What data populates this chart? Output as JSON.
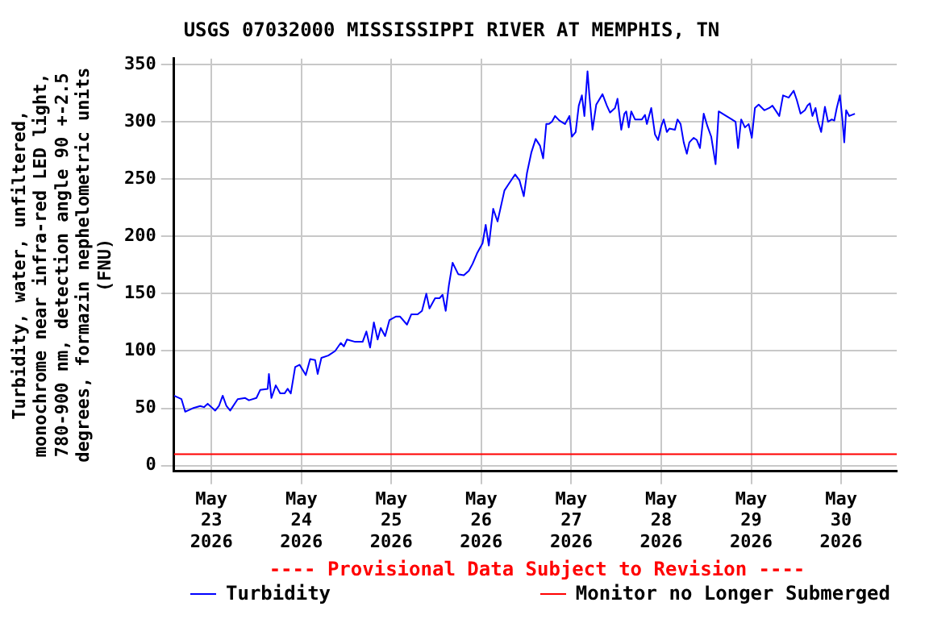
{
  "chart_data": {
    "type": "line",
    "title": "USGS 07032000 MISSISSIPPI RIVER AT MEMPHIS, TN",
    "ylabel": "Turbidity, water, unfiltered, monochrome near infra-red LED light, 780-900 nm, detection angle 90 +-2.5 degrees, formazin nephelometric units (FNU)",
    "annotations": [
      "---- Provisional Data Subject to Revision ----"
    ],
    "xlim": [
      "2026-05-22T14:00",
      "2026-05-30T14:50"
    ],
    "xticks": [
      {
        "value": "2026-05-23",
        "label": "May\n23\n2026"
      },
      {
        "value": "2026-05-24",
        "label": "May\n24\n2026"
      },
      {
        "value": "2026-05-25",
        "label": "May\n25\n2026"
      },
      {
        "value": "2026-05-26",
        "label": "May\n26\n2026"
      },
      {
        "value": "2026-05-27",
        "label": "May\n27\n2026"
      },
      {
        "value": "2026-05-28",
        "label": "May\n28\n2026"
      },
      {
        "value": "2026-05-29",
        "label": "May\n29\n2026"
      },
      {
        "value": "2026-05-30",
        "label": "May\n30\n2026"
      }
    ],
    "ylim": [
      -5,
      355
    ],
    "yticks": [
      0,
      50,
      100,
      150,
      200,
      250,
      300,
      350
    ],
    "grid": true,
    "legend": "bottom",
    "marker": "none",
    "line_style": "solid",
    "ref_lines": [
      {
        "axis": "y",
        "value": 10,
        "label": "Monitor no Longer Submerged",
        "color": "#ff0000"
      }
    ],
    "series": [
      {
        "name": "Turbidity",
        "color": "#0000ff",
        "x": [
          "2026-05-22T14:00",
          "2026-05-22T16:00",
          "2026-05-22T17:00",
          "2026-05-22T19:00",
          "2026-05-22T21:00",
          "2026-05-22T22:00",
          "2026-05-22T23:00",
          "2026-05-23T01:00",
          "2026-05-23T02:00",
          "2026-05-23T03:00",
          "2026-05-23T04:00",
          "2026-05-23T05:00",
          "2026-05-23T07:00",
          "2026-05-23T09:00",
          "2026-05-23T10:00",
          "2026-05-23T12:00",
          "2026-05-23T13:00",
          "2026-05-23T15:00",
          "2026-05-23T15:20",
          "2026-05-23T16:00",
          "2026-05-23T17:10",
          "2026-05-23T18:20",
          "2026-05-23T19:30",
          "2026-05-23T20:20",
          "2026-05-23T21:10",
          "2026-05-23T22:20",
          "2026-05-23T23:30",
          "2026-05-24T01:10",
          "2026-05-24T02:20",
          "2026-05-24T03:40",
          "2026-05-24T04:20",
          "2026-05-24T05:20",
          "2026-05-24T07:10",
          "2026-05-24T09:00",
          "2026-05-24T10:30",
          "2026-05-24T11:20",
          "2026-05-24T12:10",
          "2026-05-24T14:20",
          "2026-05-24T16:20",
          "2026-05-24T17:20",
          "2026-05-24T18:20",
          "2026-05-24T19:20",
          "2026-05-24T20:20",
          "2026-05-24T21:10",
          "2026-05-24T22:20",
          "2026-05-24T23:30",
          "2026-05-25T01:10",
          "2026-05-25T02:20",
          "2026-05-25T04:10",
          "2026-05-25T05:20",
          "2026-05-25T07:00",
          "2026-05-25T08:10",
          "2026-05-25T09:20",
          "2026-05-25T10:10",
          "2026-05-25T11:40",
          "2026-05-25T12:50",
          "2026-05-25T13:40",
          "2026-05-25T14:30",
          "2026-05-25T15:20",
          "2026-05-25T16:20",
          "2026-05-25T17:50",
          "2026-05-25T19:20",
          "2026-05-25T20:40",
          "2026-05-25T21:40",
          "2026-05-25T22:50",
          "2026-05-26T00:20",
          "2026-05-26T01:10",
          "2026-05-26T02:00",
          "2026-05-26T03:10",
          "2026-05-26T04:20",
          "2026-05-26T06:10",
          "2026-05-26T07:10",
          "2026-05-26T09:00",
          "2026-05-26T10:10",
          "2026-05-26T11:20",
          "2026-05-26T12:10",
          "2026-05-26T13:20",
          "2026-05-26T14:30",
          "2026-05-26T15:40",
          "2026-05-26T16:30",
          "2026-05-26T17:20",
          "2026-05-26T18:00",
          "2026-05-26T18:50",
          "2026-05-26T19:40",
          "2026-05-26T20:50",
          "2026-05-26T22:20",
          "2026-05-26T23:30",
          "2026-05-27T00:10",
          "2026-05-27T01:10",
          "2026-05-27T02:00",
          "2026-05-27T02:50",
          "2026-05-27T03:30",
          "2026-05-27T04:20",
          "2026-05-27T04:50",
          "2026-05-27T05:40",
          "2026-05-27T06:40",
          "2026-05-27T08:20",
          "2026-05-27T09:30",
          "2026-05-27T10:20",
          "2026-05-27T11:40",
          "2026-05-27T12:20",
          "2026-05-27T13:20",
          "2026-05-27T14:10",
          "2026-05-27T14:40",
          "2026-05-27T15:20",
          "2026-05-27T16:00",
          "2026-05-27T17:00",
          "2026-05-27T18:50",
          "2026-05-27T19:40",
          "2026-05-27T20:10",
          "2026-05-27T21:20",
          "2026-05-27T22:20",
          "2026-05-27T23:10",
          "2026-05-28T00:00",
          "2026-05-28T00:40",
          "2026-05-28T01:30",
          "2026-05-28T02:10",
          "2026-05-28T03:40",
          "2026-05-28T04:20",
          "2026-05-28T05:10",
          "2026-05-28T06:00",
          "2026-05-28T06:50",
          "2026-05-28T07:30",
          "2026-05-28T08:40",
          "2026-05-28T09:30",
          "2026-05-28T10:20",
          "2026-05-28T11:20",
          "2026-05-28T12:20",
          "2026-05-28T13:20",
          "2026-05-28T14:30",
          "2026-05-28T15:20",
          "2026-05-28T17:20",
          "2026-05-28T18:50",
          "2026-05-28T19:50",
          "2026-05-28T20:30",
          "2026-05-28T21:20",
          "2026-05-28T22:20",
          "2026-05-28T23:20",
          "2026-05-29T00:10",
          "2026-05-29T01:00",
          "2026-05-29T02:00",
          "2026-05-29T03:30",
          "2026-05-29T04:50",
          "2026-05-29T05:40",
          "2026-05-29T07:30",
          "2026-05-29T08:30",
          "2026-05-29T10:00",
          "2026-05-29T11:20",
          "2026-05-29T12:10",
          "2026-05-29T13:10",
          "2026-05-29T14:20",
          "2026-05-29T15:00",
          "2026-05-29T15:40",
          "2026-05-29T16:20",
          "2026-05-29T17:10",
          "2026-05-29T17:50",
          "2026-05-29T18:40",
          "2026-05-29T19:40",
          "2026-05-29T20:30",
          "2026-05-29T21:30",
          "2026-05-29T22:10",
          "2026-05-29T22:50",
          "2026-05-29T23:40",
          "2026-05-30T00:20",
          "2026-05-30T00:50",
          "2026-05-30T01:20",
          "2026-05-30T02:10",
          "2026-05-30T03:40"
        ],
        "values": [
          61,
          58,
          47,
          50,
          52,
          51,
          54,
          48,
          52,
          61,
          52,
          48,
          58,
          59,
          57,
          59,
          66,
          67,
          80,
          59,
          70,
          63,
          63,
          67,
          63,
          86,
          88,
          79,
          93,
          92,
          80,
          94,
          96,
          100,
          107,
          104,
          110,
          108,
          108,
          117,
          103,
          125,
          110,
          120,
          113,
          127,
          130,
          130,
          123,
          132,
          132,
          135,
          150,
          137,
          146,
          146,
          149,
          135,
          157,
          177,
          167,
          166,
          170,
          176,
          185,
          194,
          210,
          192,
          224,
          213,
          240,
          245,
          254,
          249,
          235,
          255,
          273,
          285,
          279,
          268,
          298,
          298,
          300,
          305,
          301,
          298,
          305,
          287,
          291,
          314,
          323,
          305,
          344,
          323,
          293,
          315,
          324,
          314,
          308,
          312,
          320,
          293,
          307,
          309,
          295,
          309,
          302,
          302,
          306,
          298,
          312,
          289,
          284,
          296,
          302,
          291,
          294,
          293,
          302,
          298,
          282,
          272,
          282,
          286,
          284,
          277,
          307,
          296,
          287,
          263,
          309,
          305,
          302,
          300,
          277,
          302,
          295,
          298,
          286,
          312,
          315,
          310,
          312,
          314,
          305,
          323,
          321,
          327,
          319,
          307,
          310,
          314,
          316,
          305,
          312,
          300,
          291,
          313,
          300,
          302,
          301,
          312,
          323,
          302,
          282,
          310,
          305,
          307
        ]
      }
    ]
  }
}
